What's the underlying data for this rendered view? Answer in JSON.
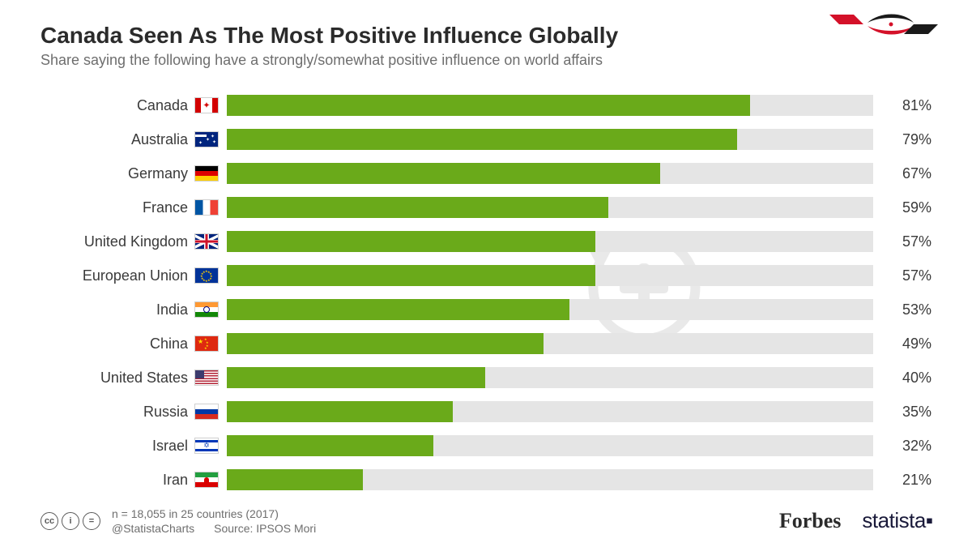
{
  "title": "Canada Seen As The Most Positive Influence Globally",
  "subtitle": "Share saying the following have a strongly/somewhat positive influence on world affairs",
  "chart": {
    "type": "bar",
    "bar_color": "#6aaa1a",
    "track_color": "#e5e5e5",
    "max_value": 100,
    "label_fontsize": 18,
    "value_fontsize": 18,
    "label_color": "#3a3a3a",
    "background": "#ffffff",
    "rows": [
      {
        "label": "Canada",
        "value": 81,
        "display": "81%",
        "flag": "canada"
      },
      {
        "label": "Australia",
        "value": 79,
        "display": "79%",
        "flag": "aus"
      },
      {
        "label": "Germany",
        "value": 67,
        "display": "67%",
        "flag": "de"
      },
      {
        "label": "France",
        "value": 59,
        "display": "59%",
        "flag": "fr"
      },
      {
        "label": "United Kingdom",
        "value": 57,
        "display": "57%",
        "flag": "uk"
      },
      {
        "label": "European Union",
        "value": 57,
        "display": "57%",
        "flag": "eu"
      },
      {
        "label": "India",
        "value": 53,
        "display": "53%",
        "flag": "in"
      },
      {
        "label": "China",
        "value": 49,
        "display": "49%",
        "flag": "cn"
      },
      {
        "label": "United States",
        "value": 40,
        "display": "40%",
        "flag": "us"
      },
      {
        "label": "Russia",
        "value": 35,
        "display": "35%",
        "flag": "ru"
      },
      {
        "label": "Israel",
        "value": 32,
        "display": "32%",
        "flag": "il"
      },
      {
        "label": "Iran",
        "value": 21,
        "display": "21%",
        "flag": "ir"
      }
    ]
  },
  "footer": {
    "handle": "@StatistaCharts",
    "sample": "n = 18,055 in 25 countries (2017)",
    "source": "Source: IPSOS Mori",
    "brand1": "Forbes",
    "brand2": "statista",
    "cc_labels": [
      "cc",
      "i",
      "="
    ]
  },
  "watermark": {
    "plus_icon_color": "#b9b9b9",
    "logo_red": "#d41129",
    "logo_dark": "#1a1a1a"
  }
}
